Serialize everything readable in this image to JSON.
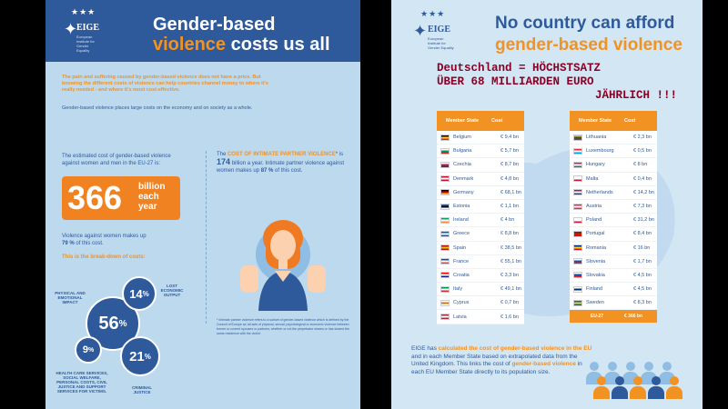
{
  "left": {
    "title_line1": "Gender-based",
    "title_line2_orange": "violence",
    "title_line2_rest": " costs us all",
    "logo_text": "EIGE",
    "logo_sub": "European Institute for Gender Equality",
    "intro_orange": "The pain and suffering caused by gender-based violence does not have a price. But knowing the different costs of violence can help countries channel money to where it's really needed - and where it's most cost-effective.",
    "intro_blue": "Gender-based violence places large costs on the economy and on society as a whole.",
    "estimated": "The estimated cost of gender-based violence against women and men in the EU-27 is:",
    "big_number": "366",
    "big_unit": "billion each year",
    "vaw_text": "Violence against women makes up",
    "vaw_pct": "79 %",
    "vaw_suffix": " of this cost.",
    "breakdown": "This is the break-down of costs:",
    "ipv_prefix": "The ",
    "ipv_highlight": "COST OF INTIMATE PARTNER VIOLENCE",
    "ipv_mid": "* is ",
    "ipv_amount": "174",
    "ipv_after": " billion a year. Intimate partner violence against women makes up ",
    "ipv_pct": "87 %",
    "ipv_end": " of this cost.",
    "footnote": "* Intimate partner violence refers to a subset of gender-based violence which is defined by the Council of Europe as 'all acts of physical, sexual, psychological or economic violence between former or current spouses or partners, whether or not the perpetrator shares or has shared the same residence with the victim'.",
    "circles": {
      "c56": "56",
      "c14": "14",
      "c9": "9",
      "c21": "21",
      "pct": "%"
    },
    "labels": {
      "physical": "PHYSICAL AND EMOTIONAL IMPACT",
      "lost": "LOST ECONOMIC OUTPUT",
      "health": "HEALTH CARE SERVICES, SOCIAL WELFARE, PERSONAL COSTS, CIVIL JUSTICE AND SUPPORT SERVICES FOR VICTIMS.",
      "criminal": "CRIMINAL JUSTICE"
    }
  },
  "right": {
    "logo_text": "EIGE",
    "logo_sub": "European Institute for Gender Equality",
    "title_line1": "No country can afford",
    "title_line2": "gender-based violence",
    "overlay_line1": "Deutschland = HÖCHSTSATZ",
    "overlay_line2": "ÜBER 68 MILLIARDEN EURO",
    "overlay_line3": "JÄHRLICH !!!",
    "table_header_state": "Member State",
    "table_header_cost": "Cost",
    "table1": [
      {
        "name": "Belgium",
        "cost": "€ 9,4 bn",
        "flag": [
          "#000000",
          "#f7d117",
          "#e2242a"
        ]
      },
      {
        "name": "Bulgaria",
        "cost": "€ 5,7 bn",
        "flag": [
          "#ffffff",
          "#00966e",
          "#d62612"
        ]
      },
      {
        "name": "Czechia",
        "cost": "€ 8,7 bn",
        "flag": [
          "#ffffff",
          "#d7141a",
          "#11457e"
        ]
      },
      {
        "name": "Denmark",
        "cost": "€ 4,8 bn",
        "flag": [
          "#c8102e",
          "#ffffff",
          "#c8102e"
        ]
      },
      {
        "name": "Germany",
        "cost": "€ 68,1 bn",
        "flag": [
          "#000000",
          "#dd0000",
          "#ffce00"
        ]
      },
      {
        "name": "Estonia",
        "cost": "€ 1,1 bn",
        "flag": [
          "#0072ce",
          "#000000",
          "#ffffff"
        ]
      },
      {
        "name": "Ireland",
        "cost": "€ 4 bn",
        "flag": [
          "#169b62",
          "#ffffff",
          "#ff883e"
        ]
      },
      {
        "name": "Greece",
        "cost": "€ 8,8 bn",
        "flag": [
          "#0d5eaf",
          "#ffffff",
          "#0d5eaf"
        ]
      },
      {
        "name": "Spain",
        "cost": "€ 38,5 bn",
        "flag": [
          "#aa151b",
          "#f1bf00",
          "#aa151b"
        ]
      },
      {
        "name": "France",
        "cost": "€ 55,1 bn",
        "flag": [
          "#0055a4",
          "#ffffff",
          "#ef4135"
        ]
      },
      {
        "name": "Croatia",
        "cost": "€ 3,3 bn",
        "flag": [
          "#ff0000",
          "#ffffff",
          "#171796"
        ]
      },
      {
        "name": "Italy",
        "cost": "€ 49,1 bn",
        "flag": [
          "#009246",
          "#ffffff",
          "#ce2b37"
        ]
      },
      {
        "name": "Cyprus",
        "cost": "€ 0,7 bn",
        "flag": [
          "#ffffff",
          "#d57800",
          "#ffffff"
        ]
      },
      {
        "name": "Latvia",
        "cost": "€ 1,6 bn",
        "flag": [
          "#9e3039",
          "#ffffff",
          "#9e3039"
        ]
      }
    ],
    "table2": [
      {
        "name": "Lithuania",
        "cost": "€ 2,3 bn",
        "flag": [
          "#fdb913",
          "#006a44",
          "#c1272d"
        ]
      },
      {
        "name": "Luxembourg",
        "cost": "€ 0,5 bn",
        "flag": [
          "#ed2939",
          "#ffffff",
          "#00a1de"
        ]
      },
      {
        "name": "Hungary",
        "cost": "€ 8 bn",
        "flag": [
          "#ce2939",
          "#ffffff",
          "#477050"
        ]
      },
      {
        "name": "Malta",
        "cost": "€ 0,4 bn",
        "flag": [
          "#ffffff",
          "#ffffff",
          "#cf142b"
        ]
      },
      {
        "name": "Netherlands",
        "cost": "€ 14,2 bn",
        "flag": [
          "#ae1c28",
          "#ffffff",
          "#21468b"
        ]
      },
      {
        "name": "Austria",
        "cost": "€ 7,3 bn",
        "flag": [
          "#ed2939",
          "#ffffff",
          "#ed2939"
        ]
      },
      {
        "name": "Poland",
        "cost": "€ 31,2 bn",
        "flag": [
          "#ffffff",
          "#ffffff",
          "#dc143c"
        ]
      },
      {
        "name": "Portugal",
        "cost": "€ 8,4 bn",
        "flag": [
          "#006600",
          "#ff0000",
          "#ff0000"
        ]
      },
      {
        "name": "Romania",
        "cost": "€ 16 bn",
        "flag": [
          "#002b7f",
          "#fcd116",
          "#ce1126"
        ]
      },
      {
        "name": "Slovenia",
        "cost": "€ 1,7 bn",
        "flag": [
          "#ffffff",
          "#005da4",
          "#ed1c24"
        ]
      },
      {
        "name": "Slovakia",
        "cost": "€ 4,5 bn",
        "flag": [
          "#ffffff",
          "#0b4ea2",
          "#ee1c25"
        ]
      },
      {
        "name": "Finland",
        "cost": "€ 4,5 bn",
        "flag": [
          "#ffffff",
          "#002f6c",
          "#ffffff"
        ]
      },
      {
        "name": "Sweden",
        "cost": "€ 8,3 bn",
        "flag": [
          "#006aa7",
          "#fecc00",
          "#006aa7"
        ]
      }
    ],
    "total_label": "EU-27",
    "total_value": "€ 366 bn",
    "foot_1": "EIGE has ",
    "foot_orange1": "calculated the cost of gender-based violence in the EU",
    "foot_2": " and in each Member State based on extrapolated data from the United Kingdom. This links the cost of ",
    "foot_orange2": "gender-based violence",
    "foot_3": " in each EU Member State directly to its population size.",
    "colors": {
      "brand_blue": "#2e5a9c",
      "accent_orange": "#f29222",
      "overlay_red": "#8b0024"
    }
  }
}
